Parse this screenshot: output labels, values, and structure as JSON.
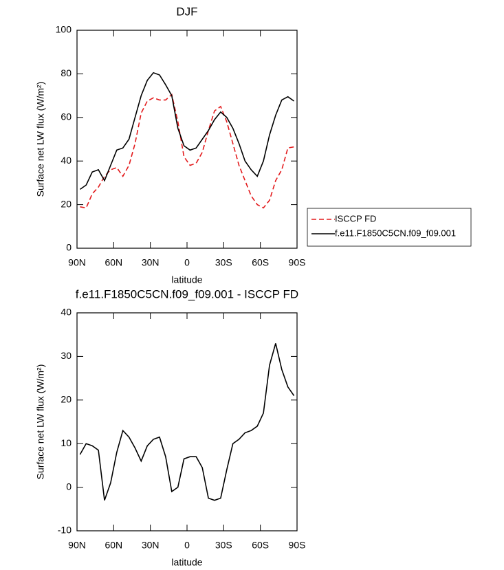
{
  "chart_data": [
    {
      "type": "line",
      "title": "DJF",
      "x_label": "latitude",
      "y_label": "Surface net LW flux (W/m²)",
      "x": [
        87.5,
        82.5,
        77.5,
        72.5,
        67.5,
        62.5,
        57.5,
        52.5,
        47.5,
        42.5,
        37.5,
        32.5,
        27.5,
        22.5,
        17.5,
        12.5,
        7.5,
        2.5,
        -2.5,
        -7.5,
        -12.5,
        -17.5,
        -22.5,
        -27.5,
        -32.5,
        -37.5,
        -42.5,
        -47.5,
        -52.5,
        -57.5,
        -62.5,
        -67.5,
        -72.5,
        -77.5,
        -82.5,
        -87.5
      ],
      "series": [
        {
          "name": "ISCCP FD",
          "color": "#e31a1c",
          "dashed": true,
          "values": [
            19,
            18.5,
            25,
            28,
            33,
            36,
            37,
            33,
            38,
            48,
            62,
            67.5,
            69,
            68,
            68,
            70.5,
            58,
            42,
            38,
            39,
            44,
            54,
            63,
            65,
            58,
            48,
            38,
            31,
            24,
            20,
            18.5,
            22,
            31,
            36,
            46,
            46.5
          ]
        },
        {
          "name": "f.e11.F1850C5CN.f09_f09.001",
          "color": "#000000",
          "dashed": false,
          "values": [
            27,
            29,
            35,
            36,
            31,
            38,
            45,
            46,
            50,
            60,
            70,
            77,
            80.5,
            79.5,
            75,
            70,
            55,
            47,
            45,
            46,
            50,
            54,
            59,
            62.5,
            60,
            55,
            48,
            40,
            36,
            33,
            40,
            52,
            61,
            68,
            69.5,
            67.5
          ]
        }
      ],
      "xlim": [
        90,
        -90
      ],
      "xticks": [
        {
          "value": 90,
          "label": "90N"
        },
        {
          "value": 60,
          "label": "60N"
        },
        {
          "value": 30,
          "label": "30N"
        },
        0,
        {
          "value": -30,
          "label": "30S"
        },
        {
          "value": -60,
          "label": "60S"
        },
        {
          "value": -90,
          "label": "90S"
        }
      ],
      "ylim": [
        0,
        100
      ],
      "yticks": [
        0,
        20,
        40,
        60,
        80,
        100
      ],
      "legend": "right"
    },
    {
      "type": "line",
      "title": "f.e11.F1850C5CN.f09_f09.001 - ISCCP FD",
      "x_label": "latitude",
      "y_label": "Surface net LW flux (W/m²)",
      "x": [
        87.5,
        82.5,
        77.5,
        72.5,
        67.5,
        62.5,
        57.5,
        52.5,
        47.5,
        42.5,
        37.5,
        32.5,
        27.5,
        22.5,
        17.5,
        12.5,
        7.5,
        2.5,
        -2.5,
        -7.5,
        -12.5,
        -17.5,
        -22.5,
        -27.5,
        -32.5,
        -37.5,
        -42.5,
        -47.5,
        -52.5,
        -57.5,
        -62.5,
        -67.5,
        -72.5,
        -77.5,
        -82.5,
        -87.5
      ],
      "series": [
        {
          "color": "#000000",
          "dashed": false,
          "values": [
            7.5,
            10,
            9.5,
            8.5,
            -3,
            1,
            8,
            13,
            11.5,
            9,
            6,
            9.5,
            11,
            11.5,
            7,
            -1,
            0,
            6.5,
            7,
            7,
            4.5,
            -2.5,
            -3,
            -2.5,
            4,
            10,
            11,
            12.5,
            13,
            14,
            17,
            28,
            33,
            27,
            23,
            21
          ]
        }
      ],
      "xlim": [
        90,
        -90
      ],
      "xticks": [
        {
          "value": 90,
          "label": "90N"
        },
        {
          "value": 60,
          "label": "60N"
        },
        {
          "value": 30,
          "label": "30N"
        },
        0,
        {
          "value": -30,
          "label": "30S"
        },
        {
          "value": -60,
          "label": "60S"
        },
        {
          "value": -90,
          "label": "90S"
        }
      ],
      "ylim": [
        -10,
        40
      ],
      "yticks": [
        -10,
        0,
        10,
        20,
        30,
        40
      ]
    }
  ]
}
